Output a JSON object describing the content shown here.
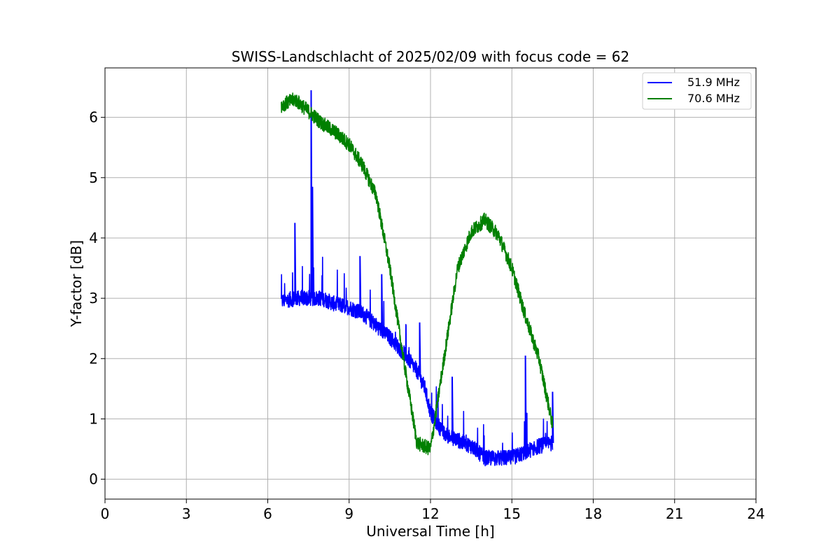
{
  "chart_data": {
    "type": "line",
    "title": "SWISS-Landschlacht of 2025/02/09 with focus code = 62",
    "xlabel": "Universal Time [h]",
    "ylabel": "Y-factor [dB]",
    "xlim": [
      0,
      24
    ],
    "ylim": [
      -0.33,
      6.82
    ],
    "xticks": [
      "0",
      "3",
      "6",
      "9",
      "12",
      "15",
      "18",
      "21",
      "24"
    ],
    "yticks": [
      "0",
      "1",
      "2",
      "3",
      "4",
      "5",
      "6"
    ],
    "grid": true,
    "legend_position": "top-right",
    "series": [
      {
        "name": "51.9 MHz",
        "color": "#0000ff",
        "x": [
          6.5,
          7.0,
          7.5,
          8.0,
          8.5,
          9.0,
          9.5,
          10.0,
          10.5,
          11.0,
          11.5,
          11.8,
          12.0,
          12.5,
          13.0,
          13.5,
          14.0,
          14.5,
          15.0,
          15.5,
          16.0,
          16.5
        ],
        "y": [
          2.95,
          3.0,
          3.0,
          3.0,
          2.9,
          2.85,
          2.75,
          2.55,
          2.35,
          2.1,
          1.8,
          1.5,
          1.1,
          0.75,
          0.65,
          0.55,
          0.35,
          0.35,
          0.35,
          0.45,
          0.55,
          0.6
        ],
        "spikes": [
          {
            "x": 7.0,
            "y": 4.25
          },
          {
            "x": 7.6,
            "y": 6.45
          },
          {
            "x": 7.6,
            "y": 5.0
          },
          {
            "x": 7.65,
            "y": 4.85
          },
          {
            "x": 9.4,
            "y": 3.7
          },
          {
            "x": 10.2,
            "y": 3.4
          },
          {
            "x": 11.6,
            "y": 2.6
          },
          {
            "x": 12.8,
            "y": 1.7
          },
          {
            "x": 15.5,
            "y": 2.05
          },
          {
            "x": 16.5,
            "y": 1.45
          }
        ]
      },
      {
        "name": "70.6 MHz",
        "color": "#008000",
        "x": [
          6.5,
          7.0,
          7.5,
          8.0,
          8.5,
          9.0,
          9.5,
          10.0,
          10.5,
          11.0,
          11.5,
          12.0,
          12.5,
          13.0,
          13.5,
          14.0,
          14.5,
          15.0,
          15.5,
          16.0,
          16.5
        ],
        "y": [
          6.2,
          6.3,
          6.1,
          5.9,
          5.75,
          5.55,
          5.2,
          4.7,
          3.5,
          2.0,
          0.6,
          0.5,
          2.0,
          3.5,
          4.1,
          4.3,
          4.05,
          3.5,
          2.7,
          2.0,
          0.9
        ]
      }
    ]
  }
}
